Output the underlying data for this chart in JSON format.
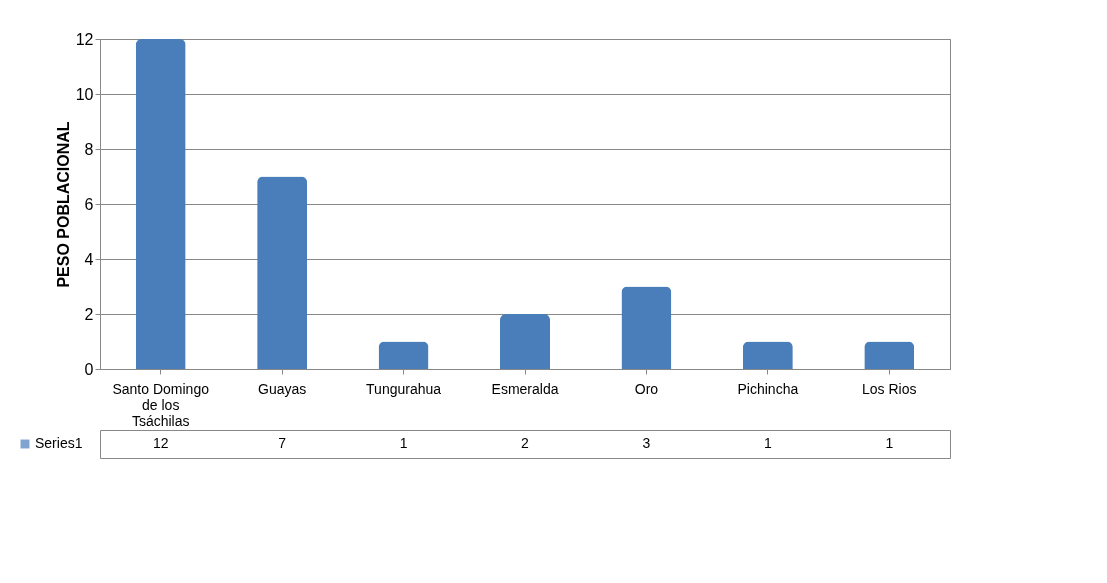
{
  "chart_data": {
    "type": "bar",
    "ylabel": "PESO POBLACIONAL",
    "categories": [
      "Santo Domingo de los Tsáchilas",
      "Guayas",
      "Tungurahua",
      "Esmeralda",
      "Oro",
      "Pichincha",
      "Los Rios"
    ],
    "series": [
      {
        "name": "Series1",
        "color": "#4a7ebb",
        "values": [
          12,
          7,
          1,
          2,
          3,
          1,
          1
        ]
      }
    ],
    "ylim": [
      0,
      12
    ],
    "yticks": [
      0,
      2,
      4,
      6,
      8,
      10,
      12
    ],
    "grid": "y",
    "data_labels": true
  }
}
